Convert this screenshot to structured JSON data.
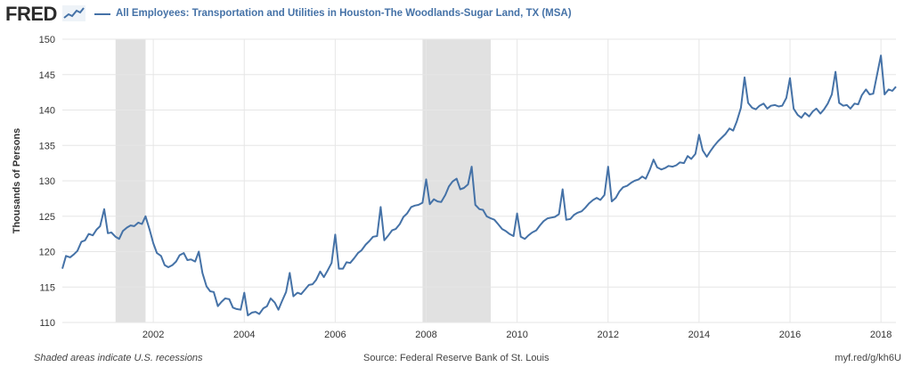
{
  "header": {
    "logo_text": "FRED",
    "logo_icon": "fred-trend-icon",
    "title": "All Employees: Transportation and Utilities in Houston-The Woodlands-Sugar Land, TX (MSA)"
  },
  "footer": {
    "note": "Shaded areas indicate U.S. recessions",
    "source": "Source: Federal Reserve Bank of St. Louis",
    "link": "myf.red/g/kh6U"
  },
  "colors": {
    "line": "#4572a7",
    "recession": "#e1e1e1",
    "grid": "#e6e6e6",
    "text": "#333333"
  },
  "chart_data": {
    "type": "line",
    "title": "All Employees: Transportation and Utilities in Houston-The Woodlands-Sugar Land, TX (MSA)",
    "xlabel": "",
    "ylabel": "Thousands of Persons",
    "xlim": [
      2000.0,
      2018.33
    ],
    "ylim": [
      110,
      150
    ],
    "y_ticks": [
      110,
      115,
      120,
      125,
      130,
      135,
      140,
      145,
      150
    ],
    "x_ticks": [
      2002,
      2004,
      2006,
      2008,
      2010,
      2012,
      2014,
      2016,
      2018
    ],
    "grid": true,
    "recessions": [
      [
        2001.17,
        2001.83
      ],
      [
        2007.92,
        2009.42
      ]
    ],
    "series": [
      {
        "name": "All Employees: Transportation and Utilities in Houston-The Woodlands-Sugar Land, TX (MSA)",
        "x": [
          2000.0,
          2000.08,
          2000.17,
          2000.25,
          2000.33,
          2000.42,
          2000.5,
          2000.58,
          2000.67,
          2000.75,
          2000.83,
          2000.92,
          2001.0,
          2001.08,
          2001.17,
          2001.25,
          2001.33,
          2001.42,
          2001.5,
          2001.58,
          2001.67,
          2001.75,
          2001.83,
          2001.92,
          2002.0,
          2002.08,
          2002.17,
          2002.25,
          2002.33,
          2002.42,
          2002.5,
          2002.58,
          2002.67,
          2002.75,
          2002.83,
          2002.92,
          2003.0,
          2003.08,
          2003.17,
          2003.25,
          2003.33,
          2003.42,
          2003.5,
          2003.58,
          2003.67,
          2003.75,
          2003.83,
          2003.92,
          2004.0,
          2004.08,
          2004.17,
          2004.25,
          2004.33,
          2004.42,
          2004.5,
          2004.58,
          2004.67,
          2004.75,
          2004.83,
          2004.92,
          2005.0,
          2005.08,
          2005.17,
          2005.25,
          2005.33,
          2005.42,
          2005.5,
          2005.58,
          2005.67,
          2005.75,
          2005.83,
          2005.92,
          2006.0,
          2006.08,
          2006.17,
          2006.25,
          2006.33,
          2006.42,
          2006.5,
          2006.58,
          2006.67,
          2006.75,
          2006.83,
          2006.92,
          2007.0,
          2007.08,
          2007.17,
          2007.25,
          2007.33,
          2007.42,
          2007.5,
          2007.58,
          2007.67,
          2007.75,
          2007.83,
          2007.92,
          2008.0,
          2008.08,
          2008.17,
          2008.25,
          2008.33,
          2008.42,
          2008.5,
          2008.58,
          2008.67,
          2008.75,
          2008.83,
          2008.92,
          2009.0,
          2009.08,
          2009.17,
          2009.25,
          2009.33,
          2009.42,
          2009.5,
          2009.58,
          2009.67,
          2009.75,
          2009.83,
          2009.92,
          2010.0,
          2010.08,
          2010.17,
          2010.25,
          2010.33,
          2010.42,
          2010.5,
          2010.58,
          2010.67,
          2010.75,
          2010.83,
          2010.92,
          2011.0,
          2011.08,
          2011.17,
          2011.25,
          2011.33,
          2011.42,
          2011.5,
          2011.58,
          2011.67,
          2011.75,
          2011.83,
          2011.92,
          2012.0,
          2012.08,
          2012.17,
          2012.25,
          2012.33,
          2012.42,
          2012.5,
          2012.58,
          2012.67,
          2012.75,
          2012.83,
          2012.92,
          2013.0,
          2013.08,
          2013.17,
          2013.25,
          2013.33,
          2013.42,
          2013.5,
          2013.58,
          2013.67,
          2013.75,
          2013.83,
          2013.92,
          2014.0,
          2014.08,
          2014.17,
          2014.25,
          2014.33,
          2014.42,
          2014.5,
          2014.58,
          2014.67,
          2014.75,
          2014.83,
          2014.92,
          2015.0,
          2015.08,
          2015.17,
          2015.25,
          2015.33,
          2015.42,
          2015.5,
          2015.58,
          2015.67,
          2015.75,
          2015.83,
          2015.92,
          2016.0,
          2016.08,
          2016.17,
          2016.25,
          2016.33,
          2016.42,
          2016.5,
          2016.58,
          2016.67,
          2016.75,
          2016.83,
          2016.92,
          2017.0,
          2017.08,
          2017.17,
          2017.25,
          2017.33,
          2017.42,
          2017.5,
          2017.58,
          2017.67,
          2017.75,
          2017.83,
          2017.92,
          2018.0,
          2018.08,
          2018.17,
          2018.25,
          2018.33
        ],
        "y": [
          117.6,
          119.4,
          119.2,
          119.6,
          120.1,
          121.4,
          121.6,
          122.5,
          122.3,
          123.1,
          123.6,
          126.0,
          122.6,
          122.7,
          122.1,
          121.8,
          122.9,
          123.4,
          123.7,
          123.6,
          124.1,
          123.9,
          125.0,
          123.1,
          121.2,
          119.8,
          119.4,
          118.1,
          117.8,
          118.1,
          118.6,
          119.5,
          119.8,
          118.8,
          118.9,
          118.6,
          120.0,
          117.0,
          115.1,
          114.4,
          114.3,
          112.3,
          112.9,
          113.4,
          113.3,
          112.1,
          111.9,
          111.8,
          114.2,
          111.0,
          111.4,
          111.5,
          111.2,
          112.0,
          112.3,
          113.4,
          112.8,
          111.8,
          113.0,
          114.3,
          117.0,
          113.7,
          114.2,
          114.0,
          114.6,
          115.3,
          115.4,
          116.0,
          117.2,
          116.4,
          117.3,
          118.4,
          122.4,
          117.6,
          117.6,
          118.5,
          118.4,
          119.1,
          119.8,
          120.2,
          121.0,
          121.5,
          122.1,
          122.2,
          126.3,
          121.6,
          122.3,
          123.0,
          123.2,
          123.9,
          124.9,
          125.4,
          126.3,
          126.5,
          126.6,
          126.9,
          130.2,
          126.7,
          127.4,
          127.1,
          127.0,
          128.0,
          129.2,
          129.9,
          130.3,
          128.8,
          129.0,
          129.5,
          132.0,
          126.6,
          126.0,
          125.9,
          125.0,
          124.7,
          124.5,
          123.9,
          123.2,
          122.9,
          122.5,
          122.2,
          125.4,
          122.1,
          121.8,
          122.3,
          122.7,
          123.0,
          123.7,
          124.3,
          124.7,
          124.8,
          124.9,
          125.3,
          128.8,
          124.5,
          124.6,
          125.2,
          125.5,
          125.7,
          126.2,
          126.8,
          127.3,
          127.6,
          127.3,
          128.0,
          132.0,
          127.1,
          127.6,
          128.5,
          129.1,
          129.3,
          129.7,
          130.0,
          130.2,
          130.6,
          130.3,
          131.6,
          133.0,
          131.9,
          131.6,
          131.8,
          132.1,
          132.0,
          132.2,
          132.6,
          132.5,
          133.5,
          133.1,
          133.8,
          136.5,
          134.3,
          133.4,
          134.2,
          134.9,
          135.6,
          136.1,
          136.6,
          137.4,
          137.1,
          138.4,
          140.3,
          144.6,
          141.0,
          140.3,
          140.1,
          140.6,
          140.9,
          140.2,
          140.6,
          140.7,
          140.5,
          140.6,
          141.7,
          144.5,
          140.2,
          139.3,
          138.9,
          139.6,
          139.1,
          139.8,
          140.2,
          139.5,
          140.1,
          140.9,
          142.2,
          145.4,
          141.0,
          140.6,
          140.7,
          140.2,
          140.9,
          140.8,
          142.1,
          142.9,
          142.2,
          142.3,
          145.2,
          147.7,
          142.2,
          142.9,
          142.7,
          143.3
        ]
      }
    ]
  }
}
